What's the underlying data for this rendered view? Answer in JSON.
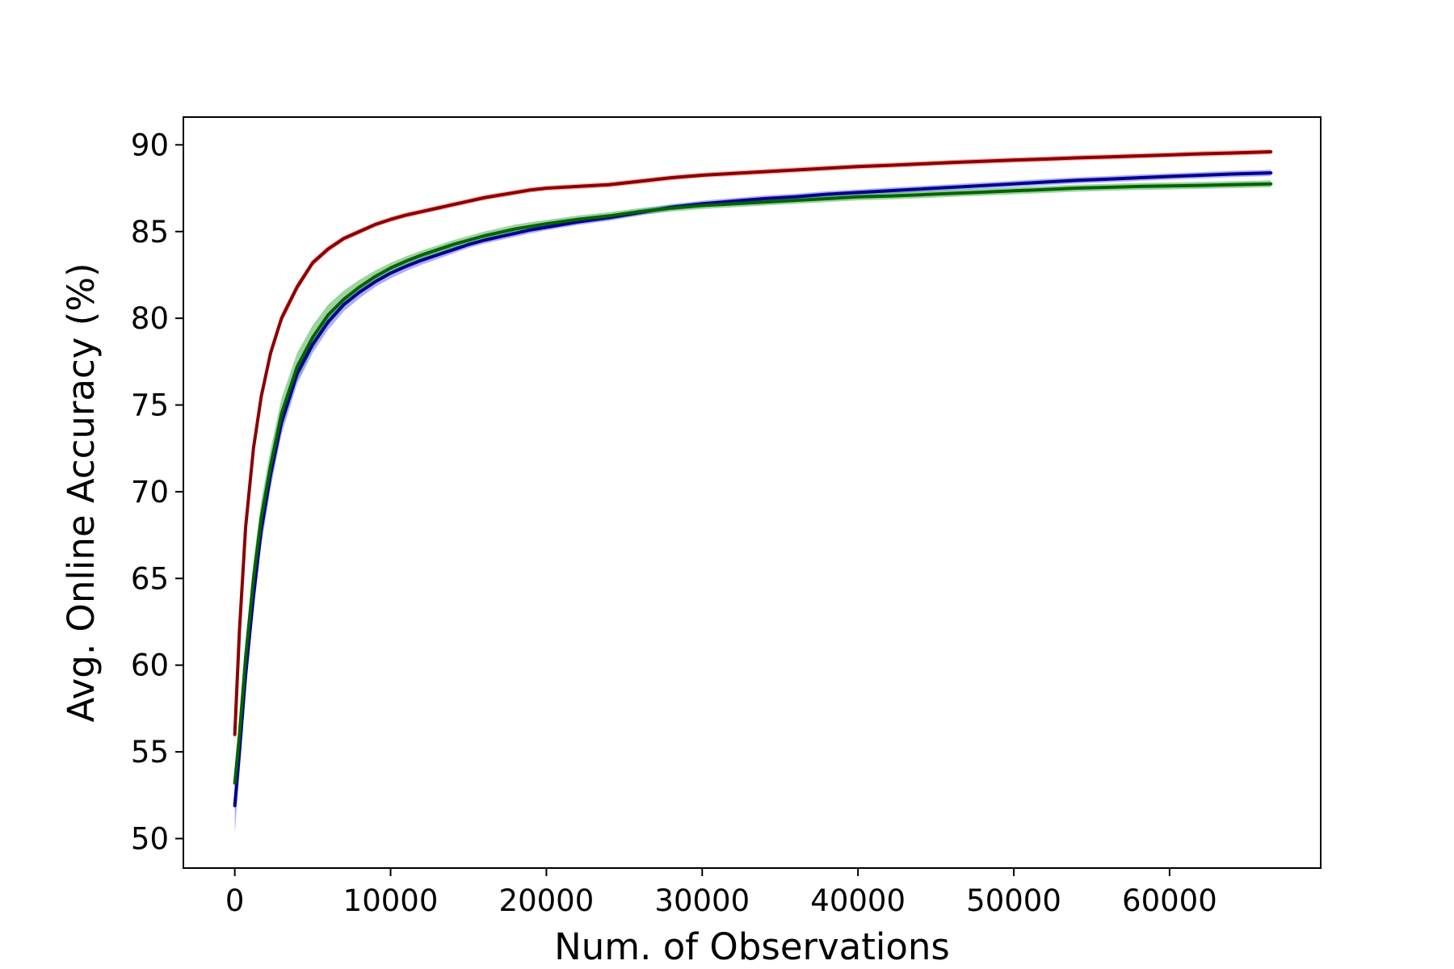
{
  "chart_data": {
    "type": "line",
    "title": "",
    "xlabel": "Num. of Observations",
    "ylabel": "Avg. Online Accuracy (%)",
    "xlim": [
      -3300,
      69700
    ],
    "ylim": [
      48.3,
      91.6
    ],
    "xticks": [
      0,
      10000,
      20000,
      30000,
      40000,
      50000,
      60000
    ],
    "yticks": [
      50,
      55,
      60,
      65,
      70,
      75,
      80,
      85,
      90
    ],
    "grid": false,
    "legend": "none",
    "series": [
      {
        "color": "#8b0000",
        "band_color": "#ff6b6b",
        "x": [
          0,
          300,
          700,
          1200,
          1700,
          2300,
          3000,
          4000,
          5000,
          6000,
          7000,
          8000,
          9000,
          10000,
          11000,
          12000,
          13000,
          14000,
          15000,
          16000,
          17000,
          18000,
          19000,
          20000,
          22000,
          24000,
          26000,
          28000,
          30000,
          32000,
          34000,
          36000,
          38000,
          40000,
          42000,
          44000,
          46000,
          48000,
          50000,
          52000,
          54000,
          56000,
          58000,
          60000,
          62000,
          64000,
          66500
        ],
        "y": [
          56.0,
          62.0,
          68.0,
          72.5,
          75.5,
          78.0,
          80.0,
          81.8,
          83.2,
          84.0,
          84.6,
          85.0,
          85.4,
          85.7,
          85.95,
          86.15,
          86.35,
          86.55,
          86.75,
          86.95,
          87.1,
          87.25,
          87.4,
          87.5,
          87.6,
          87.7,
          87.9,
          88.1,
          88.25,
          88.35,
          88.45,
          88.55,
          88.65,
          88.75,
          88.82,
          88.9,
          88.98,
          89.05,
          89.12,
          89.18,
          89.25,
          89.3,
          89.36,
          89.42,
          89.48,
          89.53,
          89.6
        ],
        "band": [
          0.8,
          0.7,
          0.6,
          0.5,
          0.4,
          0.35,
          0.3,
          0.25,
          0.2,
          0.18,
          0.16,
          0.15,
          0.15,
          0.15,
          0.15,
          0.15,
          0.15,
          0.15,
          0.15,
          0.15,
          0.15,
          0.15,
          0.15,
          0.15,
          0.15,
          0.15,
          0.15,
          0.15,
          0.15,
          0.15,
          0.15,
          0.15,
          0.15,
          0.15,
          0.15,
          0.15,
          0.15,
          0.15,
          0.15,
          0.15,
          0.15,
          0.15,
          0.15,
          0.15,
          0.15,
          0.15,
          0.15
        ]
      },
      {
        "color": "#00008b",
        "band_color": "#6b6bff",
        "x": [
          0,
          300,
          700,
          1200,
          1700,
          2300,
          3000,
          4000,
          5000,
          6000,
          7000,
          8000,
          9000,
          10000,
          11000,
          12000,
          13000,
          14000,
          15000,
          16000,
          17000,
          18000,
          19000,
          20000,
          22000,
          24000,
          26000,
          28000,
          30000,
          32000,
          34000,
          36000,
          38000,
          40000,
          42000,
          44000,
          46000,
          48000,
          50000,
          52000,
          54000,
          56000,
          58000,
          60000,
          62000,
          64000,
          66500
        ],
        "y": [
          51.9,
          55.0,
          59.5,
          64.0,
          67.8,
          71.0,
          74.0,
          76.8,
          78.5,
          79.8,
          80.8,
          81.5,
          82.1,
          82.6,
          83.0,
          83.35,
          83.65,
          83.95,
          84.25,
          84.5,
          84.7,
          84.9,
          85.1,
          85.25,
          85.55,
          85.8,
          86.1,
          86.4,
          86.6,
          86.75,
          86.9,
          87.0,
          87.15,
          87.25,
          87.35,
          87.45,
          87.55,
          87.65,
          87.75,
          87.85,
          87.95,
          88.02,
          88.1,
          88.18,
          88.25,
          88.32,
          88.38
        ],
        "band": [
          1.6,
          1.3,
          1.1,
          1.0,
          0.9,
          0.8,
          0.7,
          0.6,
          0.5,
          0.45,
          0.4,
          0.35,
          0.3,
          0.3,
          0.28,
          0.26,
          0.24,
          0.22,
          0.2,
          0.2,
          0.2,
          0.2,
          0.2,
          0.18,
          0.18,
          0.18,
          0.18,
          0.18,
          0.18,
          0.18,
          0.18,
          0.18,
          0.18,
          0.18,
          0.18,
          0.18,
          0.18,
          0.18,
          0.18,
          0.18,
          0.18,
          0.18,
          0.18,
          0.18,
          0.18,
          0.18,
          0.18
        ]
      },
      {
        "color": "#006400",
        "band_color": "#4caf50",
        "x": [
          0,
          300,
          700,
          1200,
          1700,
          2300,
          3000,
          4000,
          5000,
          6000,
          7000,
          8000,
          9000,
          10000,
          11000,
          12000,
          13000,
          14000,
          15000,
          16000,
          17000,
          18000,
          19000,
          20000,
          22000,
          24000,
          26000,
          28000,
          30000,
          32000,
          34000,
          36000,
          38000,
          40000,
          42000,
          44000,
          46000,
          48000,
          50000,
          52000,
          54000,
          56000,
          58000,
          60000,
          62000,
          64000,
          66500
        ],
        "y": [
          53.2,
          56.0,
          60.5,
          65.0,
          68.5,
          71.5,
          74.5,
          77.2,
          78.9,
          80.2,
          81.1,
          81.8,
          82.4,
          82.9,
          83.3,
          83.65,
          83.95,
          84.25,
          84.5,
          84.75,
          84.95,
          85.15,
          85.3,
          85.45,
          85.7,
          85.9,
          86.15,
          86.35,
          86.5,
          86.6,
          86.7,
          86.8,
          86.9,
          87.0,
          87.05,
          87.12,
          87.2,
          87.27,
          87.35,
          87.42,
          87.5,
          87.55,
          87.6,
          87.63,
          87.66,
          87.7,
          87.75
        ],
        "band": [
          0.4,
          0.6,
          0.8,
          1.0,
          1.0,
          0.95,
          0.9,
          0.8,
          0.7,
          0.6,
          0.5,
          0.42,
          0.35,
          0.3,
          0.28,
          0.26,
          0.25,
          0.25,
          0.25,
          0.25,
          0.25,
          0.25,
          0.25,
          0.22,
          0.22,
          0.22,
          0.2,
          0.2,
          0.2,
          0.2,
          0.2,
          0.2,
          0.2,
          0.2,
          0.2,
          0.2,
          0.2,
          0.2,
          0.2,
          0.2,
          0.2,
          0.2,
          0.2,
          0.2,
          0.2,
          0.2,
          0.2
        ]
      }
    ]
  }
}
